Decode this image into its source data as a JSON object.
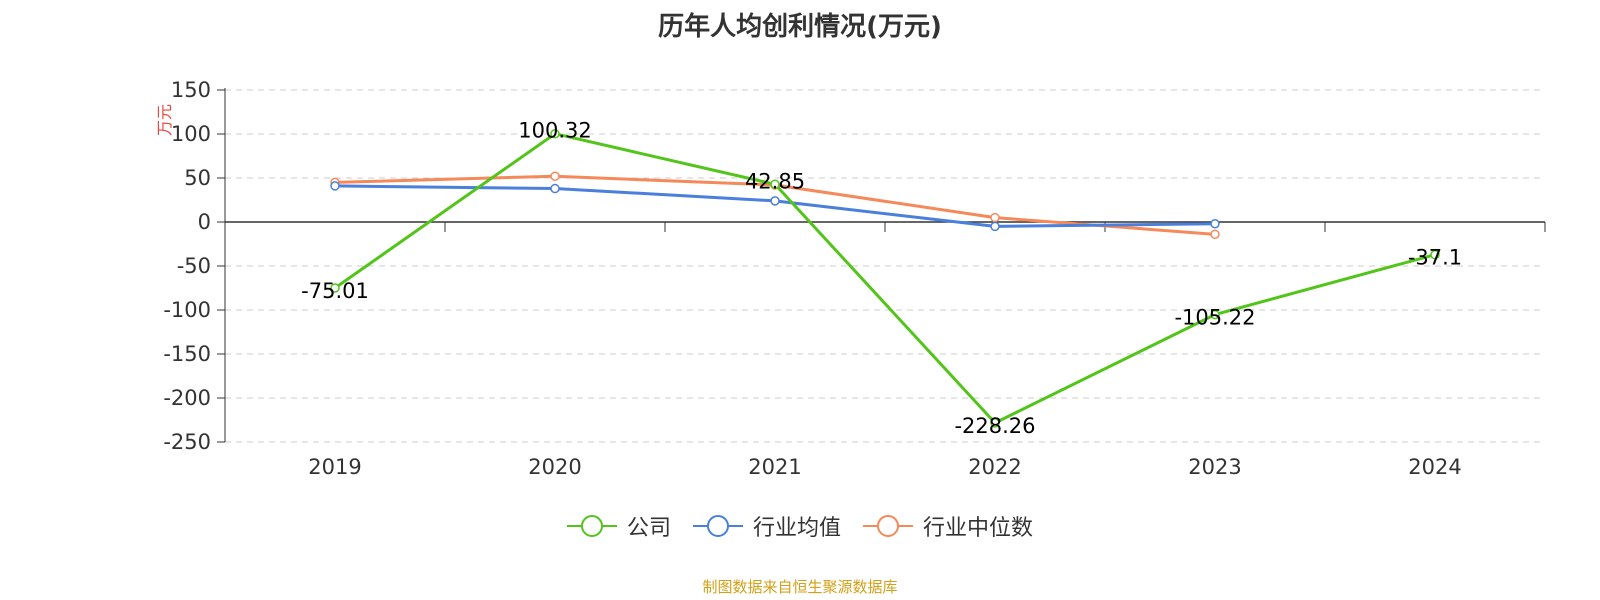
{
  "title": "历年人均创利情况(万元)",
  "source_note": "制图数据来自恒生聚源数据库",
  "colors": {
    "company": "#52c41a",
    "industry_avg": "#4a7fdc",
    "industry_median": "#f5895a",
    "source": "#d4a017"
  },
  "chart_data": {
    "type": "line",
    "title": "历年人均创利情况(万元)",
    "ylabel": "万元",
    "xlabel": "",
    "x": [
      "2019",
      "2020",
      "2021",
      "2022",
      "2023",
      "2024"
    ],
    "ylim": [
      -250,
      150
    ],
    "yticks": [
      150,
      100,
      50,
      0,
      -50,
      -100,
      -150,
      -200,
      -250
    ],
    "grid": true,
    "legend_position": "bottom",
    "series": [
      {
        "name": "公司",
        "values": [
          -75.01,
          100.32,
          42.85,
          -228.26,
          -105.22,
          -37.1
        ],
        "labels": [
          "-75.01",
          "100.32",
          "42.85",
          "-228.26",
          "-105.22",
          "-37.1"
        ]
      },
      {
        "name": "行业均值",
        "values": [
          41,
          38,
          24,
          -5,
          -2,
          null
        ]
      },
      {
        "name": "行业中位数",
        "values": [
          45,
          52,
          42,
          5,
          -14,
          null
        ]
      }
    ]
  }
}
